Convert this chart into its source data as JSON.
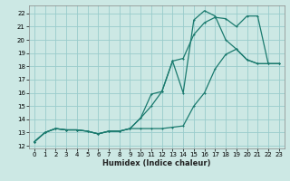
{
  "xlabel": "Humidex (Indice chaleur)",
  "bg_color": "#cce8e4",
  "grid_color": "#99cccc",
  "line_color": "#1a7a6e",
  "xlim": [
    -0.5,
    23.5
  ],
  "ylim": [
    11.8,
    22.6
  ],
  "yticks": [
    12,
    13,
    14,
    15,
    16,
    17,
    18,
    19,
    20,
    21,
    22
  ],
  "xticks": [
    0,
    1,
    2,
    3,
    4,
    5,
    6,
    7,
    8,
    9,
    10,
    11,
    12,
    13,
    14,
    15,
    16,
    17,
    18,
    19,
    20,
    21,
    22,
    23
  ],
  "line1_x": [
    0,
    1,
    2,
    3,
    4,
    5,
    6,
    7,
    8,
    9,
    10,
    11,
    12,
    13,
    14,
    15,
    16,
    17,
    18,
    19,
    20,
    21,
    22,
    23
  ],
  "line1_y": [
    12.3,
    13.0,
    13.3,
    13.2,
    13.2,
    13.1,
    12.9,
    13.1,
    13.1,
    13.3,
    13.3,
    13.3,
    13.3,
    13.4,
    13.5,
    15.0,
    16.0,
    17.8,
    18.9,
    19.3,
    18.5,
    18.2,
    18.2,
    18.2
  ],
  "line2_x": [
    0,
    1,
    2,
    3,
    4,
    5,
    6,
    7,
    8,
    9,
    10,
    11,
    12,
    13,
    14,
    15,
    16,
    17,
    18,
    19,
    20,
    21,
    22,
    23
  ],
  "line2_y": [
    12.3,
    13.0,
    13.3,
    13.2,
    13.2,
    13.1,
    12.9,
    13.1,
    13.1,
    13.3,
    14.1,
    15.0,
    16.1,
    18.4,
    16.0,
    21.5,
    22.2,
    21.8,
    20.0,
    19.3,
    18.5,
    18.2,
    18.2,
    18.2
  ],
  "line3_x": [
    0,
    1,
    2,
    3,
    4,
    5,
    6,
    7,
    8,
    9,
    10,
    11,
    12,
    13,
    14,
    15,
    16,
    17,
    18,
    19,
    20,
    21,
    22,
    23
  ],
  "line3_y": [
    12.3,
    13.0,
    13.3,
    13.2,
    13.2,
    13.1,
    12.9,
    13.1,
    13.1,
    13.3,
    14.1,
    15.9,
    16.1,
    18.4,
    18.6,
    20.4,
    21.3,
    21.7,
    21.6,
    21.0,
    21.8,
    21.8,
    18.2,
    18.2
  ]
}
